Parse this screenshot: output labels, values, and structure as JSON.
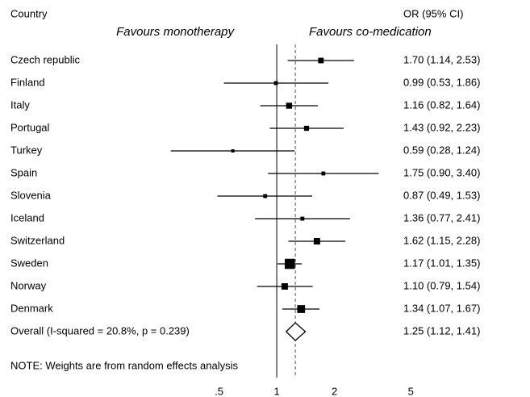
{
  "chart_data": {
    "type": "forest",
    "header_left": "Country",
    "header_right": "OR (95% CI)",
    "left_label": "Favours monotherapy",
    "right_label": "Favours co-medication",
    "categories": [
      "Czech republic",
      "Finland",
      "Italy",
      "Portugal",
      "Turkey",
      "Spain",
      "Slovenia",
      "Iceland",
      "Switzerland",
      "Sweden",
      "Norway",
      "Denmark"
    ],
    "values": [
      1.7,
      0.99,
      1.16,
      1.43,
      0.59,
      1.75,
      0.87,
      1.36,
      1.62,
      1.17,
      1.1,
      1.34
    ],
    "lower": [
      1.14,
      0.53,
      0.82,
      0.92,
      0.28,
      0.9,
      0.49,
      0.77,
      1.15,
      1.01,
      0.79,
      1.07
    ],
    "upper": [
      2.53,
      1.86,
      1.64,
      2.23,
      1.24,
      3.4,
      1.53,
      2.41,
      2.28,
      1.35,
      1.54,
      1.67
    ],
    "value_labels": [
      "1.70 (1.14, 2.53)",
      "0.99 (0.53, 1.86)",
      "1.16 (0.82, 1.64)",
      "1.43 (0.92, 2.23)",
      "0.59 (0.28, 1.24)",
      "1.75 (0.90, 3.40)",
      "0.87 (0.49, 1.53)",
      "1.36 (0.77, 2.41)",
      "1.62 (1.15, 2.28)",
      "1.17 (1.01, 1.35)",
      "1.10 (0.79, 1.54)",
      "1.34 (1.07, 1.67)"
    ],
    "weights": [
      6,
      3,
      7,
      5,
      2,
      3,
      3,
      3,
      8,
      20,
      8,
      12
    ],
    "overall": {
      "label": "Overall  (I-squared = 20.8%, p = 0.239)",
      "value": 1.25,
      "lower": 1.12,
      "upper": 1.41,
      "value_label": "1.25 (1.12, 1.41)"
    },
    "note": "NOTE: Weights are from random effects analysis",
    "reference": 1,
    "log_x": true,
    "xlim": [
      0.25,
      6
    ],
    "xticks": [
      {
        "value": 0.5,
        "label": ".5"
      },
      1,
      2,
      5
    ],
    "color": "#000000"
  }
}
